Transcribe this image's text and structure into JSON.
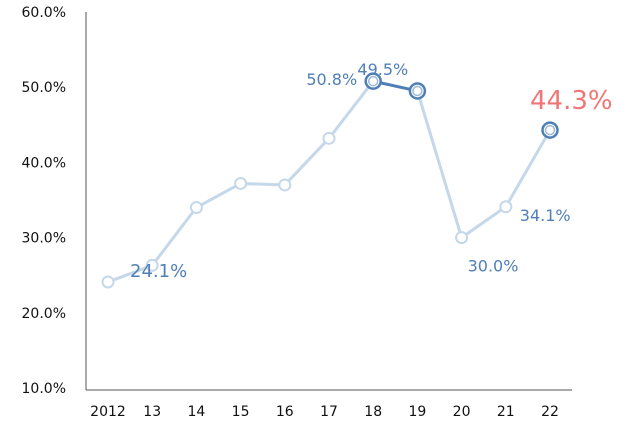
{
  "chart_data": {
    "type": "line",
    "categories": [
      "2012",
      "13",
      "14",
      "15",
      "16",
      "17",
      "18",
      "19",
      "20",
      "21",
      "22"
    ],
    "values": [
      24.1,
      26.3,
      34.0,
      37.2,
      37.0,
      43.2,
      50.8,
      49.5,
      30.0,
      34.1,
      44.3
    ],
    "ylim": [
      10,
      60
    ],
    "yticks": [
      "60.0%",
      "50.0%",
      "40.0%",
      "30.0%",
      "20.0%",
      "10.0%"
    ],
    "ytick_values": [
      60,
      50,
      40,
      30,
      20,
      10
    ],
    "grid": false,
    "legend": "none",
    "labels": [
      {
        "index": 0,
        "text": "24.1%",
        "style": "dlabel-big"
      },
      {
        "index": 6,
        "text": "50.8%",
        "style": "dlabel"
      },
      {
        "index": 7,
        "text": "49.5%",
        "style": "dlabel"
      },
      {
        "index": 8,
        "text": "30.0%",
        "style": "dlabel"
      },
      {
        "index": 9,
        "text": "34.1%",
        "style": "dlabel"
      },
      {
        "index": 10,
        "text": "44.3%",
        "style": "dlabel-accent"
      }
    ],
    "highlight_indices": [
      6,
      7,
      10
    ],
    "colors": {
      "line_light": "#c5d8ea",
      "line_dark": "#4f7fb5",
      "marker_stroke_light": "#c5d8ea",
      "marker_stroke_dark": "#4f7fb5",
      "accent": "#f07676",
      "axis": "#555555"
    }
  }
}
